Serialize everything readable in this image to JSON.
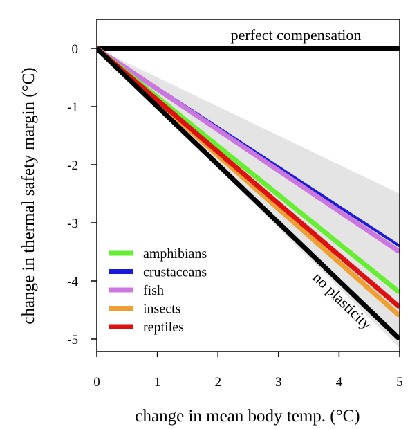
{
  "chart_data": {
    "type": "line",
    "title": "",
    "xlabel": "change in mean body temp. (°C)",
    "ylabel": "change in thermal safety margin (°C)",
    "xlim": [
      0,
      5
    ],
    "ylim": [
      -5.2,
      0.5
    ],
    "x_ticks": [
      "0",
      "1",
      "2",
      "3",
      "4",
      "5"
    ],
    "y_ticks": [
      "0",
      "-1",
      "-2",
      "-3",
      "-4",
      "-5"
    ],
    "x_tick_values": [
      0,
      1,
      2,
      3,
      4,
      5
    ],
    "y_tick_values": [
      0,
      -1,
      -2,
      -3,
      -4,
      -5
    ],
    "grid": false,
    "legend_position": "bottom-left",
    "series": [
      {
        "name": "amphibians",
        "color": "#66ee33",
        "x": [
          0,
          5
        ],
        "y": [
          0,
          -4.2
        ]
      },
      {
        "name": "crustaceans",
        "color": "#1a1adc",
        "x": [
          0,
          5
        ],
        "y": [
          0,
          -3.4
        ]
      },
      {
        "name": "fish",
        "color": "#cc77e0",
        "x": [
          0,
          5
        ],
        "y": [
          0,
          -3.5
        ]
      },
      {
        "name": "insects",
        "color": "#eea032",
        "x": [
          0,
          5
        ],
        "y": [
          0,
          -4.6
        ]
      },
      {
        "name": "reptiles",
        "color": "#dd1111",
        "x": [
          0,
          5
        ],
        "y": [
          0,
          -4.45
        ]
      }
    ],
    "reference_lines": [
      {
        "name": "perfect compensation",
        "color": "#000000",
        "x": [
          0,
          5
        ],
        "y": [
          0,
          0
        ]
      },
      {
        "name": "no plasticity",
        "color": "#000000",
        "x": [
          0,
          5
        ],
        "y": [
          0,
          -5
        ]
      }
    ],
    "confidence_band": {
      "color": "#e4e4e4",
      "x": [
        0,
        5
      ],
      "upper": [
        0,
        -2.5
      ],
      "lower": [
        0,
        -5.15
      ]
    },
    "annotations": [
      "perfect compensation",
      "no plasticity"
    ]
  }
}
